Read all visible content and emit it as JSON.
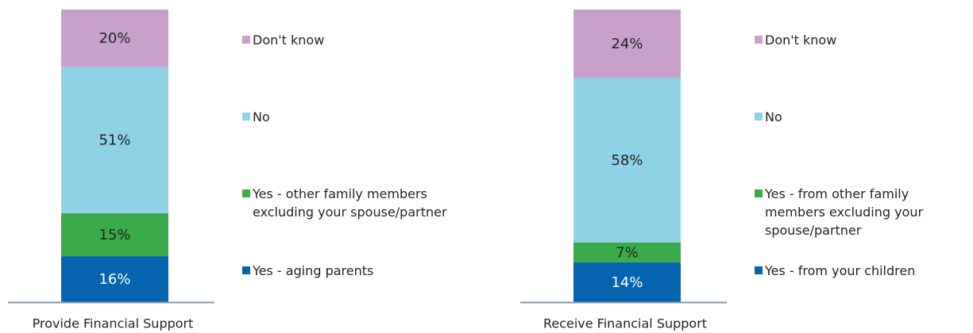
{
  "chart_data": [
    {
      "type": "bar",
      "stacked": true,
      "categories": [
        "Provide Financial Support"
      ],
      "series": [
        {
          "name": "Yes - aging parents",
          "color": "#0563b0",
          "values": [
            16
          ],
          "value_labels": [
            "16%"
          ]
        },
        {
          "name": "Yes - other family members excluding your spouse/partner",
          "color": "#3aaa4a",
          "values": [
            15
          ],
          "value_labels": [
            "15%"
          ]
        },
        {
          "name": "No",
          "color": "#8fd1e6",
          "values": [
            51
          ],
          "value_labels": [
            "51%"
          ]
        },
        {
          "name": "Don't know",
          "color": "#c9a0cc",
          "values": [
            20
          ],
          "value_labels": [
            "20%"
          ]
        }
      ]
    },
    {
      "type": "bar",
      "stacked": true,
      "categories": [
        "Receive Financial Support"
      ],
      "series": [
        {
          "name": "Yes - from your children",
          "color": "#0563b0",
          "values": [
            14
          ],
          "value_labels": [
            "14%"
          ]
        },
        {
          "name": "Yes - from other family members excluding your spouse/partner",
          "color": "#3aaa4a",
          "values": [
            7
          ],
          "value_labels": [
            "7%"
          ]
        },
        {
          "name": "No",
          "color": "#8fd1e6",
          "values": [
            58
          ],
          "value_labels": [
            "58%"
          ]
        },
        {
          "name": "Don't know",
          "color": "#c9a0cc",
          "values": [
            24
          ],
          "value_labels": [
            "24%"
          ]
        }
      ]
    }
  ]
}
